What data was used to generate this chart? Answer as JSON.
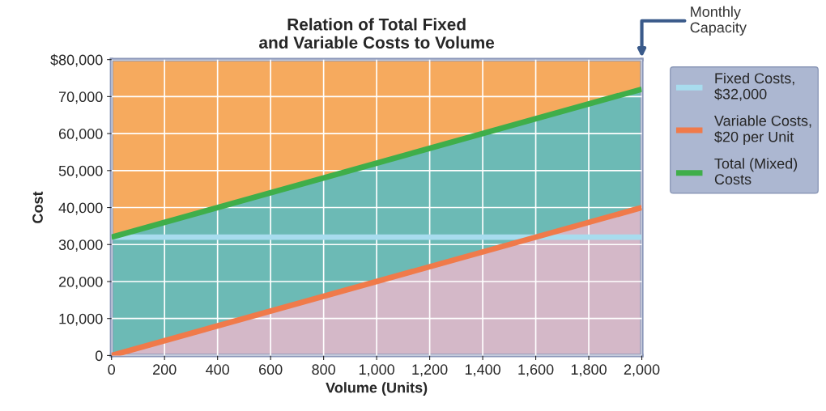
{
  "chart_data": {
    "type": "line",
    "title": "Relation of Total Fixed\nand Variable Costs to Volume",
    "xlabel": "Volume (Units)",
    "ylabel": "Cost",
    "x": [
      0,
      2000
    ],
    "series": [
      {
        "name": "Fixed Costs,\n$32,000",
        "color": "#a8dcee",
        "values": [
          32000,
          32000
        ]
      },
      {
        "name": "Variable Costs,\n$20 per Unit",
        "color": "#f07a4a",
        "values": [
          0,
          40000
        ],
        "lower": [
          0,
          0
        ],
        "upper": [
          0,
          40000
        ]
      },
      {
        "name": "Total (Mixed)\nCosts",
        "color": "#3fae4a",
        "values": [
          32000,
          72000
        ],
        "lower": [
          0,
          40000
        ],
        "upper": [
          32000,
          72000
        ]
      }
    ],
    "xlim": [
      0,
      2000
    ],
    "ylim": [
      0,
      80000
    ],
    "xticks": [
      0,
      200,
      400,
      600,
      800,
      {
        "value": 1000,
        "label": "1,000"
      },
      {
        "value": 1200,
        "label": "1,200"
      },
      {
        "value": 1400,
        "label": "1,400"
      },
      {
        "value": 1600,
        "label": "1,600"
      },
      {
        "value": 1800,
        "label": "1,800"
      },
      {
        "value": 2000,
        "label": "2,000"
      }
    ],
    "yticks": [
      0,
      {
        "value": 10000,
        "label": "10,000"
      },
      {
        "value": 20000,
        "label": "20,000"
      },
      {
        "value": 30000,
        "label": "30,000"
      },
      {
        "value": 40000,
        "label": "40,000"
      },
      {
        "value": 50000,
        "label": "50,000"
      },
      {
        "value": 60000,
        "label": "60,000"
      },
      {
        "value": 70000,
        "label": "70,000"
      },
      {
        "value": 80000,
        "label": "$80,000"
      }
    ],
    "annotations": [
      "Monthly\nCapacity"
    ],
    "bands": [
      {
        "axis": "y",
        "from": 32000,
        "to": 80000,
        "color": "#f6aa5e"
      }
    ],
    "grid": true,
    "legend": "right"
  }
}
